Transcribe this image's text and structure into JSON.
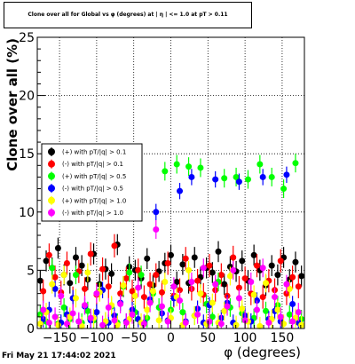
{
  "title": "Clone  over all for Global  vs φ (degrees) at | η | <= 1.0 at pT > 0.11",
  "footer": "Fri May 21 17:44:02 2021",
  "chart_data": {
    "type": "scatter",
    "title": "Clone  over all for Global  vs φ (degrees) at | η | <= 1.0 at pT > 0.11",
    "xlabel": "φ (degrees)",
    "ylabel": "Clone  over all (%)",
    "xlim": [
      -180,
      180
    ],
    "ylim": [
      0,
      25
    ],
    "x_ticks": [
      -150,
      -100,
      -50,
      0,
      50,
      100,
      150
    ],
    "x_tick_labels": [
      "−150",
      "−100",
      "−50",
      "0",
      "50",
      "100",
      "150"
    ],
    "y_ticks": [
      0,
      5,
      10,
      15,
      20,
      25
    ],
    "y_tick_labels": [
      "0",
      "5",
      "10",
      "15",
      "20",
      "25"
    ],
    "grid": true,
    "legend_position": "left-middle",
    "series": [
      {
        "name": "(+) with pT/|q| > 0.1",
        "color": "#000000",
        "x": [
          -176,
          -168,
          -160,
          -152,
          -144,
          -136,
          -128,
          -120,
          -112,
          -104,
          -96,
          -88,
          -80,
          -72,
          -64,
          -56,
          -48,
          -40,
          -32,
          -24,
          -16,
          -8,
          0,
          8,
          16,
          24,
          32,
          40,
          48,
          56,
          64,
          72,
          80,
          88,
          96,
          104,
          112,
          120,
          128,
          136,
          144,
          152,
          160,
          168,
          176
        ],
        "y": [
          4.1,
          5.8,
          5.2,
          6.9,
          4.6,
          3.9,
          6.1,
          5.4,
          4.2,
          6.4,
          3.8,
          5.1,
          4.7,
          7.2,
          3.6,
          5.3,
          5.0,
          4.3,
          6.0,
          3.7,
          4.9,
          5.6,
          6.3,
          4.0,
          5.5,
          3.9,
          6.1,
          4.4,
          5.2,
          4.8,
          6.6,
          3.8,
          5.3,
          4.9,
          5.8,
          4.1,
          6.3,
          5.0,
          3.7,
          5.4,
          4.6,
          6.1,
          4.2,
          5.7,
          4.5
        ],
        "yerr": [
          0.9,
          0.9,
          0.9,
          0.9,
          0.9,
          0.9,
          0.9,
          0.9,
          0.9,
          0.9,
          0.9,
          0.9,
          0.9,
          0.9,
          0.9,
          0.9,
          0.9,
          0.9,
          0.9,
          0.9,
          0.9,
          0.9,
          0.9,
          0.9,
          0.9,
          0.9,
          0.9,
          0.9,
          0.9,
          0.9,
          0.9,
          0.9,
          0.9,
          0.9,
          0.9,
          0.9,
          0.9,
          0.9,
          0.9,
          0.9,
          0.9,
          0.9,
          0.9,
          0.9,
          0.9
        ]
      },
      {
        "name": "(-) with pT/|q| > 0.1",
        "color": "#ff0000",
        "x": [
          -172,
          -164,
          -156,
          -148,
          -140,
          -132,
          -124,
          -116,
          -108,
          -100,
          -92,
          -84,
          -76,
          -68,
          -60,
          -52,
          -44,
          -36,
          -28,
          -20,
          -12,
          -4,
          4,
          12,
          20,
          28,
          36,
          44,
          52,
          60,
          68,
          76,
          84,
          92,
          100,
          108,
          116,
          124,
          132,
          140,
          148,
          156,
          164,
          172
        ],
        "y": [
          3.2,
          6.3,
          4.4,
          3.1,
          5.6,
          2.6,
          4.9,
          3.4,
          6.4,
          2.9,
          5.1,
          3.6,
          7.1,
          3.0,
          4.3,
          3.2,
          5.0,
          2.7,
          3.8,
          4.6,
          3.1,
          5.6,
          2.8,
          3.3,
          6.0,
          3.4,
          4.1,
          2.9,
          5.4,
          3.3,
          4.6,
          2.8,
          6.1,
          3.5,
          4.3,
          3.0,
          5.4,
          2.7,
          4.1,
          3.3,
          5.8,
          3.0,
          4.4,
          3.6
        ],
        "yerr": [
          1.0,
          1.0,
          1.0,
          1.0,
          1.0,
          1.0,
          1.0,
          1.0,
          1.0,
          1.0,
          1.0,
          1.0,
          1.0,
          1.0,
          1.0,
          1.0,
          1.0,
          1.0,
          1.0,
          1.0,
          1.0,
          1.0,
          1.0,
          1.0,
          1.0,
          1.0,
          1.0,
          1.0,
          1.0,
          1.0,
          1.0,
          1.0,
          1.0,
          1.0,
          1.0,
          1.0,
          1.0,
          1.0,
          1.0,
          1.0,
          1.0,
          1.0,
          1.0,
          1.0
        ]
      },
      {
        "name": "(+) with pT/|q| > 0.5",
        "color": "#00ff00",
        "x": [
          -176,
          -168,
          -160,
          -152,
          -144,
          -136,
          -128,
          -120,
          -112,
          -104,
          -96,
          -88,
          -80,
          -72,
          -64,
          -56,
          -48,
          -40,
          -32,
          -24,
          -16,
          -8,
          0,
          8,
          16,
          24,
          32,
          40,
          48,
          56,
          64,
          72,
          80,
          88,
          96,
          104,
          112,
          120,
          128,
          136,
          144,
          152,
          160,
          168,
          176
        ],
        "y": [
          1.2,
          0.6,
          5.2,
          0.4,
          1.8,
          0.8,
          4.6,
          0.5,
          1.5,
          0.7,
          3.2,
          0.6,
          1.9,
          0.5,
          3.6,
          4.8,
          1.4,
          4.6,
          0.9,
          3.0,
          1.8,
          13.5,
          1.6,
          14.1,
          1.4,
          13.9,
          1.1,
          13.8,
          2.1,
          1.0,
          4.0,
          12.9,
          1.8,
          13.0,
          1.3,
          12.8,
          0.9,
          14.1,
          1.5,
          13.0,
          2.0,
          12.0,
          1.2,
          14.2,
          0.8
        ],
        "yerr": [
          0.8,
          0.8,
          0.8,
          0.8,
          0.8,
          0.8,
          0.8,
          0.8,
          0.8,
          0.8,
          0.8,
          0.8,
          0.8,
          0.8,
          0.8,
          0.8,
          0.8,
          0.8,
          0.8,
          0.8,
          0.8,
          0.8,
          0.8,
          0.8,
          0.8,
          0.8,
          0.8,
          0.8,
          0.8,
          0.8,
          0.8,
          0.8,
          0.8,
          0.8,
          0.8,
          0.8,
          0.8,
          0.8,
          0.8,
          0.8,
          0.8,
          0.8,
          0.8,
          0.8,
          0.8
        ]
      },
      {
        "name": "(-) with pT/|q| > 0.5",
        "color": "#0000ff",
        "x": [
          -172,
          -164,
          -156,
          -148,
          -140,
          -132,
          -124,
          -116,
          -108,
          -100,
          -92,
          -84,
          -76,
          -68,
          -60,
          -52,
          -44,
          -36,
          -28,
          -20,
          -12,
          -4,
          4,
          12,
          20,
          28,
          36,
          44,
          52,
          60,
          68,
          76,
          84,
          92,
          100,
          108,
          116,
          124,
          132,
          140,
          148,
          156,
          164,
          172
        ],
        "y": [
          0.8,
          1.6,
          3.4,
          0.5,
          1.2,
          2.6,
          0.6,
          1.9,
          0.7,
          1.4,
          3.3,
          0.5,
          1.1,
          2.2,
          0.6,
          1.6,
          0.8,
          0.5,
          2.5,
          10.0,
          1.3,
          0.7,
          2.6,
          11.8,
          0.6,
          13.0,
          1.7,
          0.5,
          2.0,
          12.8,
          0.9,
          2.2,
          0.5,
          12.6,
          1.1,
          0.6,
          2.4,
          13.0,
          0.8,
          1.5,
          0.6,
          13.2,
          2.1,
          0.5
        ],
        "yerr": [
          0.7,
          0.7,
          0.7,
          0.7,
          0.7,
          0.7,
          0.7,
          0.7,
          0.7,
          0.7,
          0.7,
          0.7,
          0.7,
          0.7,
          0.7,
          0.7,
          0.7,
          0.7,
          0.7,
          0.7,
          0.7,
          0.7,
          0.7,
          0.7,
          0.7,
          0.7,
          0.7,
          0.7,
          0.7,
          0.7,
          0.7,
          0.7,
          0.7,
          0.7,
          0.7,
          0.7,
          0.7,
          0.7,
          0.7,
          0.7,
          0.7,
          0.7,
          0.7,
          0.7
        ]
      },
      {
        "name": "(+) with pT/|q| > 1.0",
        "color": "#ffff00",
        "x": [
          -176,
          -168,
          -160,
          -152,
          -144,
          -136,
          -128,
          -120,
          -112,
          -104,
          -96,
          -88,
          -80,
          -72,
          -64,
          -56,
          -48,
          -40,
          -32,
          -24,
          -16,
          -8,
          0,
          8,
          16,
          24,
          32,
          40,
          48,
          56,
          64,
          72,
          80,
          88,
          96,
          104,
          112,
          120,
          128,
          136,
          144,
          152,
          160,
          168,
          176
        ],
        "y": [
          0.4,
          1.4,
          3.8,
          0.3,
          4.6,
          1.0,
          2.6,
          0.2,
          4.8,
          0.9,
          3.1,
          0.6,
          2.0,
          0.3,
          3.7,
          0.8,
          2.8,
          0.5,
          1.6,
          3.2,
          0.7,
          4.0,
          0.9,
          2.7,
          0.3,
          5.0,
          1.1,
          3.0,
          0.4,
          2.2,
          0.5,
          1.5,
          4.5,
          0.3,
          1.7,
          0.6,
          2.9,
          0.2,
          3.9,
          0.8,
          1.6,
          0.4,
          3.4,
          0.9,
          0.3
        ],
        "yerr": [
          0.8,
          0.8,
          0.8,
          0.8,
          0.8,
          0.8,
          0.8,
          0.8,
          0.8,
          0.8,
          0.8,
          0.8,
          0.8,
          0.8,
          0.8,
          0.8,
          0.8,
          0.8,
          0.8,
          0.8,
          0.8,
          0.8,
          0.8,
          0.8,
          0.8,
          0.8,
          0.8,
          0.8,
          0.8,
          0.8,
          0.8,
          0.8,
          0.8,
          0.8,
          0.8,
          0.8,
          0.8,
          0.8,
          0.8,
          0.8,
          0.8,
          0.8,
          0.8,
          0.8,
          0.8
        ]
      },
      {
        "name": "(-) with pT/|q| > 1.0",
        "color": "#ff00ff",
        "x": [
          -172,
          -164,
          -156,
          -148,
          -140,
          -132,
          -124,
          -116,
          -108,
          -100,
          -92,
          -84,
          -76,
          -68,
          -60,
          -52,
          -44,
          -36,
          -28,
          -20,
          -12,
          -4,
          4,
          12,
          20,
          28,
          36,
          44,
          52,
          60,
          68,
          76,
          84,
          92,
          100,
          108,
          116,
          124,
          132,
          140,
          148,
          156,
          164,
          172
        ],
        "y": [
          1.6,
          0.5,
          1.0,
          2.8,
          0.4,
          1.3,
          0.6,
          2.0,
          0.9,
          3.0,
          0.3,
          1.8,
          0.7,
          2.1,
          0.5,
          1.2,
          3.5,
          0.4,
          2.2,
          8.5,
          1.9,
          0.6,
          3.6,
          2.4,
          0.5,
          4.0,
          1.2,
          5.2,
          0.6,
          3.8,
          0.4,
          1.9,
          5.0,
          2.6,
          0.7,
          4.0,
          1.6,
          5.2,
          0.5,
          2.7,
          1.0,
          3.8,
          0.6,
          1.4
        ],
        "yerr": [
          0.8,
          0.8,
          0.8,
          0.8,
          0.8,
          0.8,
          0.8,
          0.8,
          0.8,
          0.8,
          0.8,
          0.8,
          0.8,
          0.8,
          0.8,
          0.8,
          0.8,
          0.8,
          0.8,
          0.8,
          0.8,
          0.8,
          0.8,
          0.8,
          0.8,
          0.8,
          0.8,
          0.8,
          0.8,
          0.8,
          0.8,
          0.8,
          0.8,
          0.8,
          0.8,
          0.8,
          0.8,
          0.8,
          0.8,
          0.8,
          0.8,
          0.8,
          0.8,
          0.8
        ]
      }
    ]
  }
}
